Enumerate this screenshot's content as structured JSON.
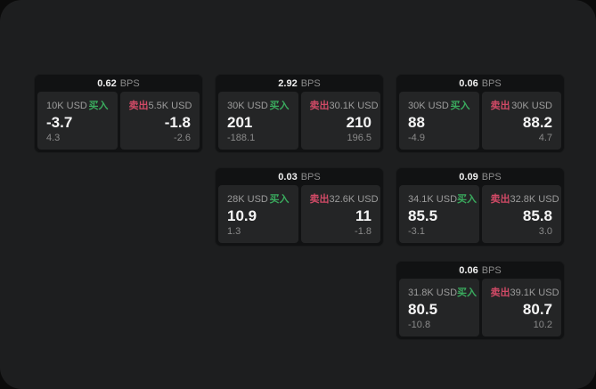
{
  "page": {
    "backdrop_color": "#0b0b0b",
    "surface_color": "#1d1e1f"
  },
  "labels": {
    "bps": "BPS",
    "buy": "买入",
    "sell": "卖出"
  },
  "colors": {
    "buy_accent": "#3aab5e",
    "sell_accent": "#d04a66",
    "card_bg": "#111213",
    "tile_bg": "#242526",
    "primary_text": "#f5f5f5",
    "secondary_text": "#9c9c9c"
  },
  "cards": [
    {
      "bps": "0.62",
      "buy": {
        "size": "10K USD",
        "price": "-3.7",
        "delta": "4.3"
      },
      "sell": {
        "size": "5.5K USD",
        "price": "-1.8",
        "delta": "-2.6"
      }
    },
    {
      "bps": "2.92",
      "buy": {
        "size": "30K USD",
        "price": "201",
        "delta": "-188.1"
      },
      "sell": {
        "size": "30.1K USD",
        "price": "210",
        "delta": "196.5"
      }
    },
    {
      "bps": "0.06",
      "buy": {
        "size": "30K USD",
        "price": "88",
        "delta": "-4.9"
      },
      "sell": {
        "size": "30K USD",
        "price": "88.2",
        "delta": "4.7"
      }
    },
    {
      "bps": "0.03",
      "buy": {
        "size": "28K USD",
        "price": "10.9",
        "delta": "1.3"
      },
      "sell": {
        "size": "32.6K USD",
        "price": "11",
        "delta": "-1.8"
      }
    },
    {
      "bps": "0.09",
      "buy": {
        "size": "34.1K USD",
        "price": "85.5",
        "delta": "-3.1"
      },
      "sell": {
        "size": "32.8K USD",
        "price": "85.8",
        "delta": "3.0"
      }
    },
    {
      "bps": "0.06",
      "buy": {
        "size": "31.8K USD",
        "price": "80.5",
        "delta": "-10.8"
      },
      "sell": {
        "size": "39.1K USD",
        "price": "80.7",
        "delta": "10.2"
      }
    }
  ]
}
